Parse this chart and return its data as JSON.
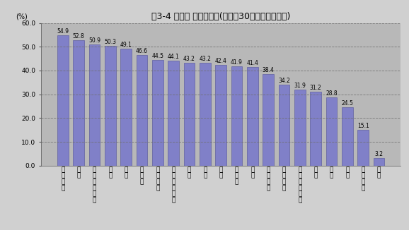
{
  "title": "図3-4 産業別 付加価値率(従業者30人以上の事業所)",
  "ylabel": "(%)",
  "categories_vertical": [
    [
      "電",
      "子",
      "部",
      "品"
    ],
    [
      "家",
      "具"
    ],
    [
      "情",
      "報",
      "通",
      "信",
      "機",
      "械"
    ],
    [
      "衣",
      "服"
    ],
    [
      "印",
      "刷"
    ],
    [
      "そ",
      "の",
      "他"
    ],
    [
      "非",
      "鉄",
      "金",
      "属"
    ],
    [
      "プ",
      "ラ",
      "ス",
      "チ",
      "ッ",
      "ク"
    ],
    [
      "食",
      "料"
    ],
    [
      "金",
      "属"
    ],
    [
      "鉄",
      "維"
    ],
    [
      "パ",
      "ル",
      "プ"
    ],
    [
      "ゴ",
      "ム"
    ],
    [
      "電",
      "気",
      "機",
      "械"
    ],
    [
      "一",
      "般",
      "機",
      "械"
    ],
    [
      "飲",
      "料",
      "・",
      "た",
      "ば",
      "こ"
    ],
    [
      "窯",
      "業"
    ],
    [
      "木",
      "材"
    ],
    [
      "化",
      "学"
    ],
    [
      "輸",
      "送",
      "機",
      "械"
    ],
    [
      "鉄",
      "鋼"
    ]
  ],
  "values": [
    54.9,
    52.8,
    50.9,
    50.3,
    49.1,
    46.6,
    44.5,
    44.1,
    43.2,
    43.2,
    42.4,
    41.9,
    41.4,
    38.4,
    34.2,
    31.9,
    31.2,
    28.8,
    24.5,
    15.1,
    3.2
  ],
  "bar_color": "#8080c8",
  "bar_edge_color": "#6060a0",
  "background_color": "#d0d0d0",
  "plot_bg_color": "#b8b8b8",
  "ylim": [
    0,
    60
  ],
  "yticks": [
    0.0,
    10.0,
    20.0,
    30.0,
    40.0,
    50.0,
    60.0
  ],
  "grid_color": "#707070",
  "title_fontsize": 9,
  "label_fontsize": 7,
  "value_fontsize": 5.5,
  "tick_fontsize": 6.5,
  "xtick_fontsize": 6.5
}
